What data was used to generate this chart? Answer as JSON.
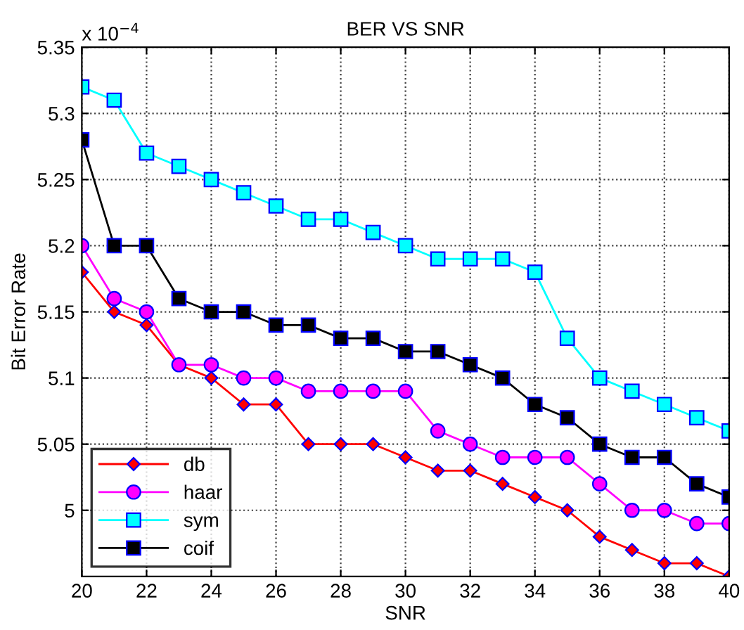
{
  "chart_data": {
    "type": "line",
    "title": "BER VS SNR",
    "xlabel": "SNR",
    "ylabel": "Bit Error Rate",
    "annotations": [
      "x 10$^{−4}$"
    ],
    "x": [
      20,
      21,
      22,
      23,
      24,
      25,
      26,
      27,
      28,
      29,
      30,
      31,
      32,
      33,
      34,
      35,
      36,
      37,
      38,
      39,
      40
    ],
    "series": [
      {
        "name": "db",
        "color": "#ff0000",
        "marker": "diamond",
        "values": [
          5.18,
          5.15,
          5.14,
          5.11,
          5.1,
          5.08,
          5.08,
          5.05,
          5.05,
          5.05,
          5.04,
          5.03,
          5.03,
          5.02,
          5.01,
          5.0,
          4.98,
          4.97,
          4.96,
          4.96,
          4.95
        ]
      },
      {
        "name": "haar",
        "color": "#ff00ff",
        "marker": "circle",
        "values": [
          5.2,
          5.16,
          5.15,
          5.11,
          5.11,
          5.1,
          5.1,
          5.09,
          5.09,
          5.09,
          5.09,
          5.06,
          5.05,
          5.04,
          5.04,
          5.04,
          5.02,
          5.0,
          5.0,
          4.99,
          4.99
        ]
      },
      {
        "name": "sym",
        "color": "#00ffff",
        "marker": "square",
        "values": [
          5.32,
          5.31,
          5.27,
          5.26,
          5.25,
          5.24,
          5.23,
          5.22,
          5.22,
          5.21,
          5.2,
          5.19,
          5.19,
          5.19,
          5.18,
          5.13,
          5.1,
          5.09,
          5.08,
          5.07,
          5.06
        ]
      },
      {
        "name": "coif",
        "color": "#000000",
        "marker": "square",
        "values": [
          5.28,
          5.2,
          5.2,
          5.16,
          5.15,
          5.15,
          5.14,
          5.14,
          5.13,
          5.13,
          5.12,
          5.12,
          5.11,
          5.1,
          5.08,
          5.07,
          5.05,
          5.04,
          5.04,
          5.02,
          5.01
        ]
      }
    ],
    "xlim": [
      20,
      40
    ],
    "xticks": [
      20,
      22,
      24,
      26,
      28,
      30,
      32,
      34,
      36,
      38,
      40
    ],
    "ylim": [
      4.95,
      5.35
    ],
    "yticks": [
      5,
      5.05,
      5.1,
      5.15,
      5.2,
      5.25,
      5.3,
      5.35
    ],
    "grid": true,
    "legend": "bottom left",
    "line_style": "solid"
  }
}
